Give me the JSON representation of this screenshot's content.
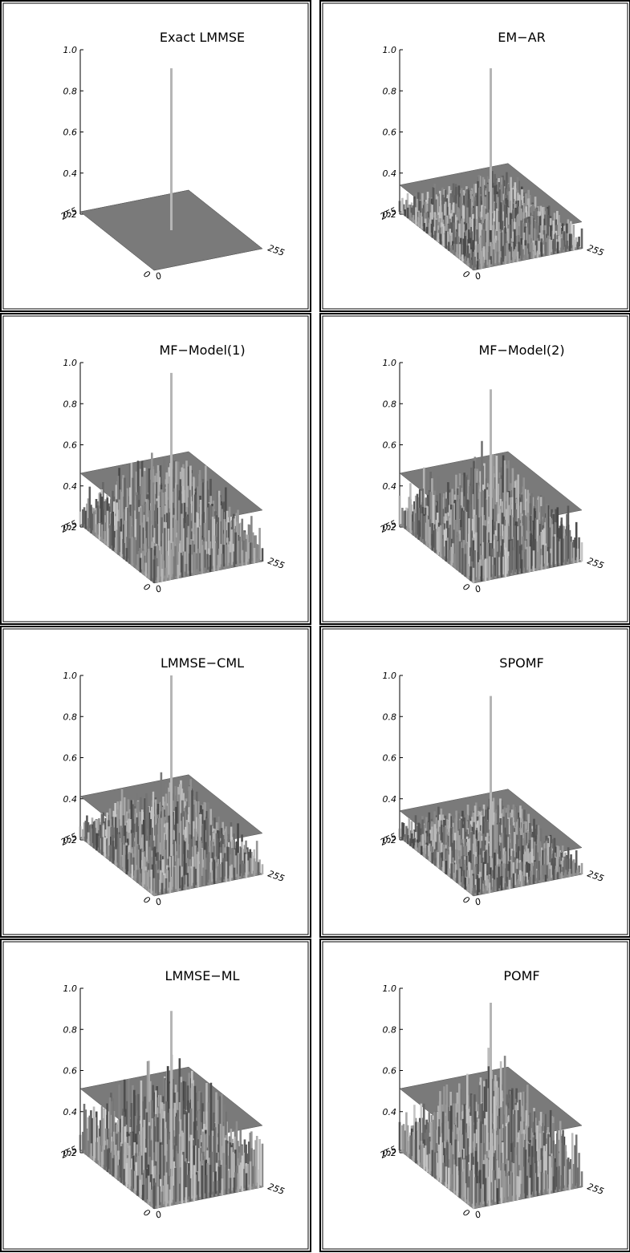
{
  "chart_data": [
    {
      "type": "surface3d",
      "title": "Exact LMMSE",
      "zlim": [
        0.2,
        1.0
      ],
      "zticks": [
        0.2,
        0.4,
        0.6,
        0.8,
        {
          "value": 1.0,
          "label": "1.0"
        }
      ],
      "xlim": [
        0,
        255
      ],
      "xticks": [
        0,
        255
      ],
      "ylim": [
        0,
        255
      ],
      "yticks": [
        0,
        255
      ],
      "peak": 0.91,
      "mean_level": 0.2
    },
    {
      "type": "surface3d",
      "title": "EM−AR",
      "zlim": [
        0.2,
        1.0
      ],
      "zticks": [
        0.2,
        0.4,
        0.6,
        0.8,
        {
          "value": 1.0,
          "label": "1.0"
        }
      ],
      "xlim": [
        0,
        255
      ],
      "xticks": [
        0,
        255
      ],
      "ylim": [
        0,
        255
      ],
      "yticks": [
        0,
        255
      ],
      "peak": 0.91,
      "mean_level": 0.33
    },
    {
      "type": "surface3d",
      "title": "MF−Model(1)",
      "zlim": [
        0.2,
        1.0
      ],
      "zticks": [
        0.2,
        0.4,
        0.6,
        0.8,
        {
          "value": 1.0,
          "label": "1.0"
        }
      ],
      "xlim": [
        0,
        255
      ],
      "xticks": [
        0,
        255
      ],
      "ylim": [
        0,
        255
      ],
      "yticks": [
        0,
        255
      ],
      "peak": 0.95,
      "mean_level": 0.45
    },
    {
      "type": "surface3d",
      "title": "MF−Model(2)",
      "zlim": [
        0.2,
        1.0
      ],
      "zticks": [
        0.2,
        0.4,
        0.6,
        0.8,
        {
          "value": 1.0,
          "label": "1.0"
        }
      ],
      "xlim": [
        0,
        255
      ],
      "xticks": [
        0,
        255
      ],
      "ylim": [
        0,
        255
      ],
      "yticks": [
        0,
        255
      ],
      "peak": 0.87,
      "mean_level": 0.45
    },
    {
      "type": "surface3d",
      "title": "LMMSE−CML",
      "zlim": [
        0.2,
        1.0
      ],
      "zticks": [
        0.2,
        0.4,
        0.6,
        0.8,
        {
          "value": 1.0,
          "label": "1.0"
        }
      ],
      "xlim": [
        0,
        255
      ],
      "xticks": [
        0,
        255
      ],
      "ylim": [
        0,
        255
      ],
      "yticks": [
        0,
        255
      ],
      "peak": 1.0,
      "mean_level": 0.4
    },
    {
      "type": "surface3d",
      "title": "SPOMF",
      "zlim": [
        0.2,
        1.0
      ],
      "zticks": [
        0.2,
        0.4,
        0.6,
        0.8,
        {
          "value": 1.0,
          "label": "1.0"
        }
      ],
      "xlim": [
        0,
        255
      ],
      "xticks": [
        0,
        255
      ],
      "ylim": [
        0,
        255
      ],
      "yticks": [
        0,
        255
      ],
      "peak": 0.9,
      "mean_level": 0.33
    },
    {
      "type": "surface3d",
      "title": "LMMSE−ML",
      "zlim": [
        0.2,
        1.0
      ],
      "zticks": [
        0.2,
        0.4,
        0.6,
        0.8,
        {
          "value": 1.0,
          "label": "1.0"
        }
      ],
      "xlim": [
        0,
        255
      ],
      "xticks": [
        0,
        255
      ],
      "ylim": [
        0,
        255
      ],
      "yticks": [
        0,
        255
      ],
      "peak": 0.89,
      "mean_level": 0.5
    },
    {
      "type": "surface3d",
      "title": "POMF",
      "zlim": [
        0.2,
        1.0
      ],
      "zticks": [
        0.2,
        0.4,
        0.6,
        0.8,
        {
          "value": 1.0,
          "label": "1.0"
        }
      ],
      "xlim": [
        0,
        255
      ],
      "xticks": [
        0,
        255
      ],
      "ylim": [
        0,
        255
      ],
      "yticks": [
        0,
        255
      ],
      "peak": 0.93,
      "mean_level": 0.5
    }
  ]
}
